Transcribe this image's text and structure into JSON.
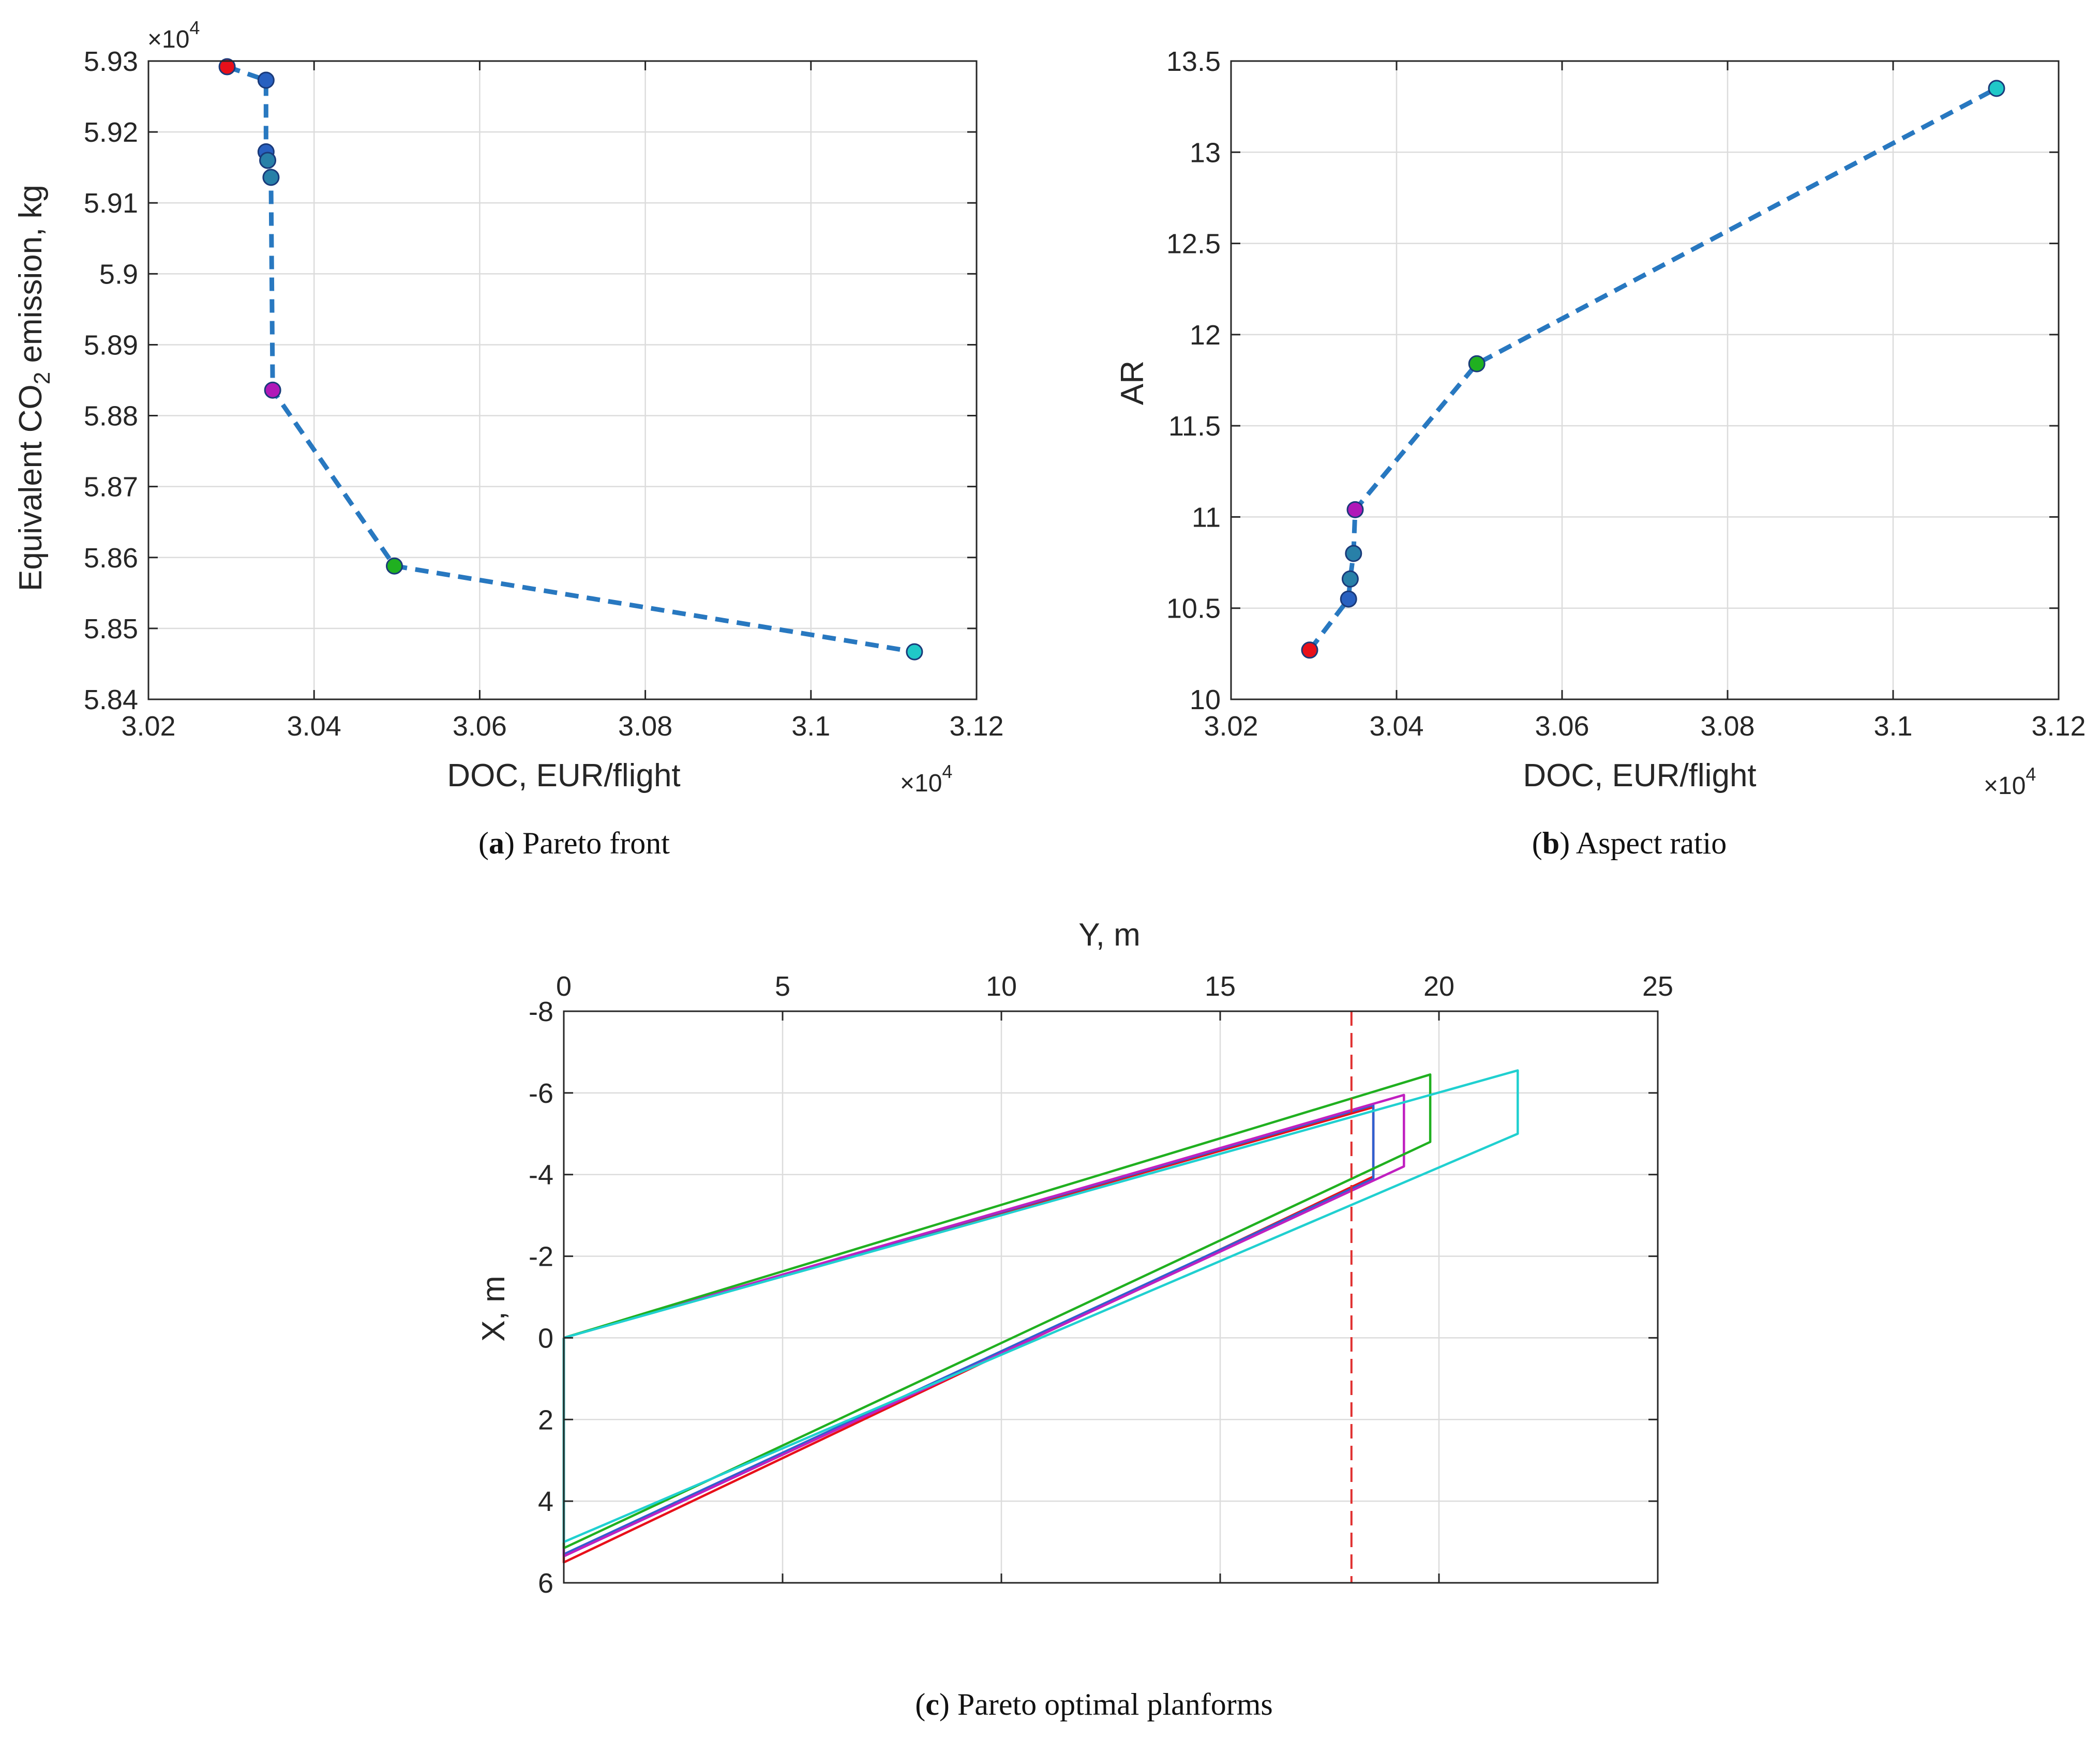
{
  "chart_data": [
    {
      "id": "a",
      "type": "line",
      "caption_letter": "a",
      "caption_text": "Pareto front",
      "xlabel": "DOC, EUR/flight",
      "ylabel_main": "Equivalent CO",
      "ylabel_sub": "2",
      "ylabel_tail": " emission, kg",
      "x_multiplier": {
        "base": "×10",
        "exp": "4"
      },
      "y_multiplier": {
        "base": "×10",
        "exp": "4"
      },
      "xlim": [
        3.02,
        3.12
      ],
      "ylim": [
        5.84,
        5.93
      ],
      "xticks": [
        3.02,
        3.04,
        3.06,
        3.08,
        3.1,
        3.12
      ],
      "xtick_labels": [
        "3.02",
        "3.04",
        "3.06",
        "3.08",
        "3.1",
        "3.12"
      ],
      "yticks": [
        5.84,
        5.85,
        5.86,
        5.87,
        5.88,
        5.89,
        5.9,
        5.91,
        5.92,
        5.93
      ],
      "ytick_labels": [
        "5.84",
        "5.85",
        "5.86",
        "5.87",
        "5.88",
        "5.89",
        "5.9",
        "5.91",
        "5.92",
        "5.93"
      ],
      "grid": true,
      "line_color": "#2878c0",
      "points": [
        {
          "x": 3.0295,
          "y": 5.9292,
          "color": "#e8101a"
        },
        {
          "x": 3.0342,
          "y": 5.9273,
          "color": "#2860c0"
        },
        {
          "x": 3.0342,
          "y": 5.9172,
          "color": "#2860c0"
        },
        {
          "x": 3.0344,
          "y": 5.916,
          "color": "#2880a8"
        },
        {
          "x": 3.0348,
          "y": 5.9136,
          "color": "#2880a8"
        },
        {
          "x": 3.035,
          "y": 5.8836,
          "color": "#b018b8"
        },
        {
          "x": 3.0497,
          "y": 5.8588,
          "color": "#20b020"
        },
        {
          "x": 3.1125,
          "y": 5.8467,
          "color": "#20c8c8"
        }
      ]
    },
    {
      "id": "b",
      "type": "line",
      "caption_letter": "b",
      "caption_text": "Aspect ratio",
      "xlabel": "DOC, EUR/flight",
      "ylabel": "AR",
      "x_multiplier": {
        "base": "×10",
        "exp": "4"
      },
      "xlim": [
        3.02,
        3.12
      ],
      "ylim": [
        10,
        13.5
      ],
      "xticks": [
        3.02,
        3.04,
        3.06,
        3.08,
        3.1,
        3.12
      ],
      "xtick_labels": [
        "3.02",
        "3.04",
        "3.06",
        "3.08",
        "3.1",
        "3.12"
      ],
      "yticks": [
        10,
        10.5,
        11,
        11.5,
        12,
        12.5,
        13,
        13.5
      ],
      "ytick_labels": [
        "10",
        "10.5",
        "11",
        "11.5",
        "12",
        "12.5",
        "13",
        "13.5"
      ],
      "grid": true,
      "line_color": "#2878c0",
      "points": [
        {
          "x": 3.0295,
          "y": 10.27,
          "color": "#e8101a"
        },
        {
          "x": 3.0342,
          "y": 10.55,
          "color": "#2860c0"
        },
        {
          "x": 3.0344,
          "y": 10.66,
          "color": "#2880a8"
        },
        {
          "x": 3.0348,
          "y": 10.8,
          "color": "#2880a8"
        },
        {
          "x": 3.035,
          "y": 11.04,
          "color": "#b018b8"
        },
        {
          "x": 3.0497,
          "y": 11.84,
          "color": "#20b020"
        },
        {
          "x": 3.1125,
          "y": 13.35,
          "color": "#20c8c8"
        }
      ]
    },
    {
      "id": "c",
      "type": "line",
      "caption_letter": "c",
      "caption_text": "Pareto optimal planforms",
      "xlabel": "Y, m",
      "ylabel": "X, m",
      "xlim": [
        0,
        25
      ],
      "ylim": [
        -8,
        6
      ],
      "xticks": [
        0,
        5,
        10,
        15,
        20,
        25
      ],
      "xtick_labels": [
        "0",
        "5",
        "10",
        "15",
        "20",
        "25"
      ],
      "yticks": [
        -8,
        -6,
        -4,
        -2,
        0,
        2,
        4,
        6
      ],
      "ytick_labels": [
        "-8",
        "-6",
        "-4",
        "-2",
        "0",
        "2",
        "4",
        "6"
      ],
      "grid": true,
      "reference_line": {
        "x": 18,
        "color": "#e03030"
      },
      "series": [
        {
          "name": "red",
          "color": "#e8101a",
          "x": [
            0,
            18.5,
            18.5,
            0,
            0
          ],
          "y": [
            0,
            -5.65,
            -3.95,
            5.5,
            0
          ]
        },
        {
          "name": "blue",
          "color": "#3060d0",
          "x": [
            0,
            18.5,
            18.5,
            0,
            0
          ],
          "y": [
            0,
            -5.7,
            -3.9,
            5.3,
            0
          ]
        },
        {
          "name": "magenta",
          "color": "#c020c0",
          "x": [
            0,
            19.2,
            19.2,
            0,
            0
          ],
          "y": [
            0,
            -5.95,
            -4.2,
            5.35,
            0
          ]
        },
        {
          "name": "green",
          "color": "#20b020",
          "x": [
            0,
            19.8,
            19.8,
            0,
            0
          ],
          "y": [
            0,
            -6.45,
            -4.8,
            5.15,
            0
          ]
        },
        {
          "name": "cyan",
          "color": "#20d0d0",
          "x": [
            0,
            21.8,
            21.8,
            0,
            0
          ],
          "y": [
            0,
            -6.55,
            -5.0,
            5.0,
            0
          ]
        }
      ]
    }
  ]
}
